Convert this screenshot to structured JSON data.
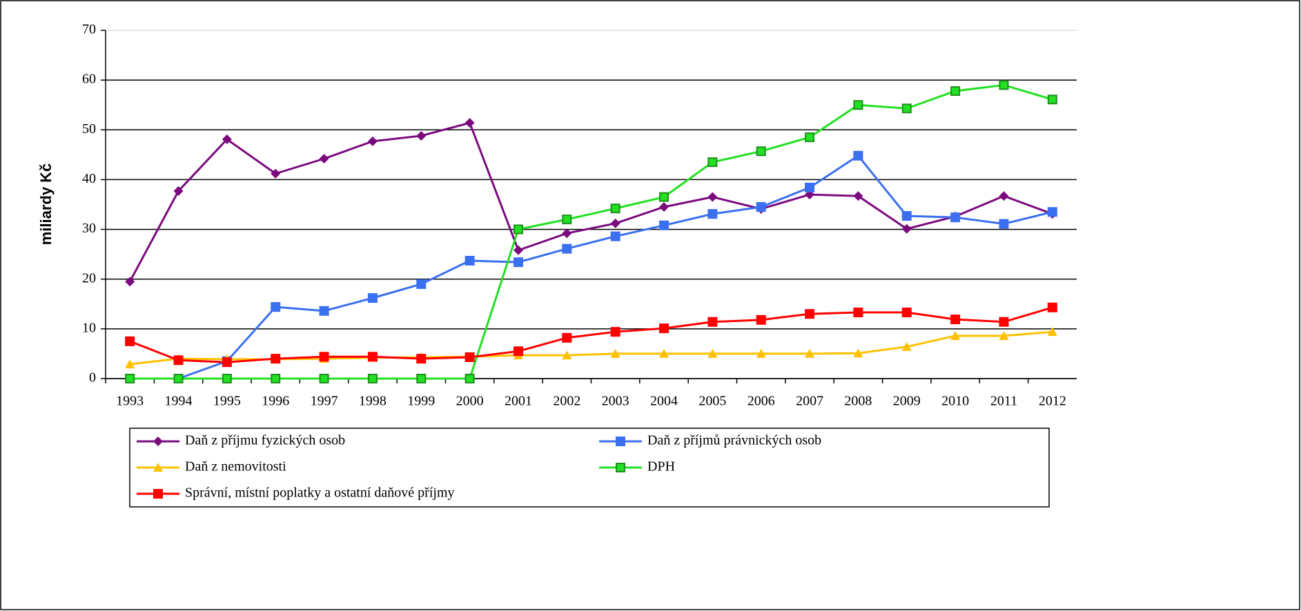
{
  "chart_data": {
    "type": "line",
    "y_label": "miliardy Kč",
    "categories": [
      "1993",
      "1994",
      "1995",
      "1996",
      "1997",
      "1998",
      "1999",
      "2000",
      "2001",
      "2002",
      "2003",
      "2004",
      "2005",
      "2006",
      "2007",
      "2008",
      "2009",
      "2010",
      "2011",
      "2012"
    ],
    "series": [
      {
        "name": "Daň z příjmu fyzických osob",
        "color": "#7b0a7f",
        "marker": "diamond",
        "values": [
          19.5,
          37.7,
          48.1,
          41.2,
          44.2,
          47.7,
          48.8,
          51.4,
          25.8,
          29.2,
          31.2,
          34.5,
          36.5,
          34.1,
          37.0,
          36.7,
          30.1,
          32.6,
          36.7,
          33.1
        ]
      },
      {
        "name": "Daň z příjmů právnických osob",
        "color": "#3a6ff0",
        "marker": "square",
        "values": [
          null,
          0,
          3.5,
          14.4,
          13.6,
          16.2,
          19.0,
          23.7,
          23.4,
          26.1,
          28.6,
          30.8,
          33.1,
          34.5,
          38.4,
          44.8,
          32.7,
          32.4,
          31.1,
          33.5
        ]
      },
      {
        "name": "Daň z nemovitosti",
        "color": "#ffc000",
        "marker": "triangle",
        "values": [
          2.9,
          4.0,
          3.9,
          3.9,
          4.0,
          4.2,
          4.3,
          4.4,
          4.7,
          4.7,
          5.0,
          5.0,
          5.0,
          5.0,
          5.0,
          5.1,
          6.4,
          8.6,
          8.6,
          9.4
        ]
      },
      {
        "name": "DPH",
        "color": "#22e022",
        "marker": "square",
        "values": [
          0,
          0,
          0,
          0,
          0,
          0,
          0,
          0,
          30.0,
          32.0,
          34.2,
          36.5,
          43.5,
          45.7,
          48.5,
          55.0,
          54.3,
          57.8,
          59.0,
          56.1
        ]
      },
      {
        "name": "Správní, místní poplatky a ostatní daňové příjmy",
        "color": "#ff0000",
        "marker": "square",
        "values": [
          7.5,
          3.7,
          3.3,
          4.0,
          4.4,
          4.4,
          4.0,
          4.3,
          5.5,
          8.2,
          9.4,
          10.1,
          11.4,
          11.8,
          13.0,
          13.3,
          13.3,
          11.9,
          11.4,
          14.3
        ]
      }
    ],
    "ylim": [
      0,
      70
    ],
    "yticks": [
      0,
      10,
      20,
      30,
      40,
      50,
      60,
      70
    ],
    "grid": true,
    "legend": "bottom"
  }
}
